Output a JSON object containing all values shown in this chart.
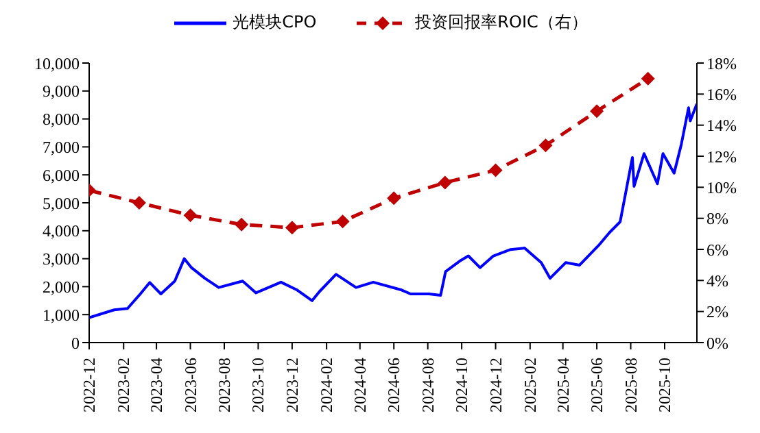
{
  "chart_data": {
    "type": "line",
    "legend": "top",
    "grid": false,
    "xlim": [
      "2022-12-01",
      "2025-11-28"
    ],
    "xticks": [
      "2022-12",
      "2023-02",
      "2023-04",
      "2023-06",
      "2023-08",
      "2023-10",
      "2023-12",
      "2024-02",
      "2024-04",
      "2024-06",
      "2024-08",
      "2024-10",
      "2024-12",
      "2025-02",
      "2025-04",
      "2025-06",
      "2025-08",
      "2025-10"
    ],
    "ylim": [
      0,
      10000
    ],
    "yticks": [
      0,
      {
        "value": 1000,
        "label": "1,000"
      },
      {
        "value": 2000,
        "label": "2,000"
      },
      {
        "value": 3000,
        "label": "3,000"
      },
      {
        "value": 4000,
        "label": "4,000"
      },
      {
        "value": 5000,
        "label": "5,000"
      },
      {
        "value": 6000,
        "label": "6,000"
      },
      {
        "value": 7000,
        "label": "7,000"
      },
      {
        "value": 8000,
        "label": "8,000"
      },
      {
        "value": 9000,
        "label": "9,000"
      },
      {
        "value": 10000,
        "label": "10,000"
      }
    ],
    "y2lim": [
      0,
      18
    ],
    "y2ticks": [
      {
        "value": 0,
        "label": "0%"
      },
      {
        "value": 2,
        "label": "2%"
      },
      {
        "value": 4,
        "label": "4%"
      },
      {
        "value": 6,
        "label": "6%"
      },
      {
        "value": 8,
        "label": "8%"
      },
      {
        "value": 10,
        "label": "10%"
      },
      {
        "value": 12,
        "label": "12%"
      },
      {
        "value": 14,
        "label": "14%"
      },
      {
        "value": 16,
        "label": "16%"
      },
      {
        "value": 18,
        "label": "18%"
      }
    ],
    "series": [
      {
        "name": "光模块CPO",
        "color": "#0000ff",
        "marker": "none",
        "line_style": "solid",
        "x": [
          "2022-12-01",
          "2023-01-15",
          "2023-02-08",
          "2023-03-03",
          "2023-03-20",
          "2023-04-09",
          "2023-05-04",
          "2023-05-21",
          "2023-06-03",
          "2023-06-27",
          "2023-07-22",
          "2023-09-03",
          "2023-09-27",
          "2023-11-11",
          "2023-12-10",
          "2024-01-06",
          "2024-01-19",
          "2024-02-18",
          "2024-03-25",
          "2024-04-25",
          "2024-06-15",
          "2024-07-01",
          "2024-08-03",
          "2024-08-24",
          "2024-09-02",
          "2024-09-27",
          "2024-10-13",
          "2024-11-03",
          "2024-11-27",
          "2024-12-28",
          "2025-01-22",
          "2025-02-21",
          "2025-03-09",
          "2025-04-06",
          "2025-05-01",
          "2025-06-04",
          "2025-06-24",
          "2025-07-13",
          "2025-07-22",
          "2025-08-04",
          "2025-08-07",
          "2025-08-25",
          "2025-09-18",
          "2025-09-28",
          "2025-10-18",
          "2025-10-31",
          "2025-11-13",
          "2025-11-16",
          "2025-11-28"
        ],
        "values": [
          890,
          1170,
          1220,
          1740,
          2150,
          1740,
          2200,
          3000,
          2680,
          2300,
          1970,
          2200,
          1780,
          2160,
          1880,
          1500,
          1820,
          2440,
          1970,
          2160,
          1880,
          1740,
          1740,
          1690,
          2540,
          2910,
          3100,
          2680,
          3100,
          3330,
          3380,
          2860,
          2300,
          2860,
          2770,
          3470,
          3940,
          4320,
          5260,
          6620,
          5590,
          6760,
          5680,
          6760,
          6060,
          7090,
          8400,
          7930,
          8540
        ]
      },
      {
        "name": "投资回报率ROIC（右）",
        "color": "#c00000",
        "axis": "y2",
        "marker": "diamond",
        "line_style": "dashed",
        "x": [
          "2022-12",
          "2023-03",
          "2023-06",
          "2023-09",
          "2023-12",
          "2024-03",
          "2024-06",
          "2024-09",
          "2024-12",
          "2025-03",
          "2025-06",
          "2025-09"
        ],
        "values": [
          9.8,
          9.0,
          8.2,
          7.6,
          7.4,
          7.8,
          9.3,
          10.3,
          11.1,
          12.7,
          14.9,
          17.0
        ]
      }
    ]
  }
}
